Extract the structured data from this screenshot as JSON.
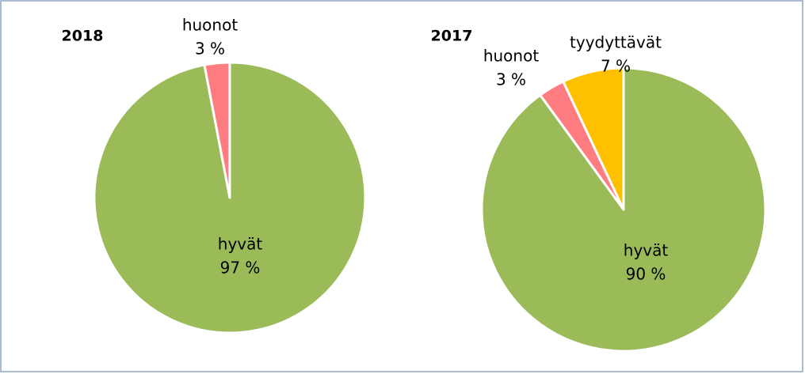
{
  "chart_data": [
    {
      "type": "pie",
      "title": "2018",
      "categories": [
        "hyvät",
        "huonot"
      ],
      "values": [
        97,
        3
      ],
      "value_labels": [
        "97 %",
        "3 %"
      ],
      "colors": [
        "#9bbb59",
        "#ff7c80"
      ]
    },
    {
      "type": "pie",
      "title": "2017",
      "categories": [
        "hyvät",
        "huonot",
        "tyydyttävät"
      ],
      "values": [
        90,
        3,
        7
      ],
      "value_labels": [
        "90 %",
        "3 %",
        "7 %"
      ],
      "colors": [
        "#9bbb59",
        "#ff7c80",
        "#ffc000"
      ]
    }
  ]
}
